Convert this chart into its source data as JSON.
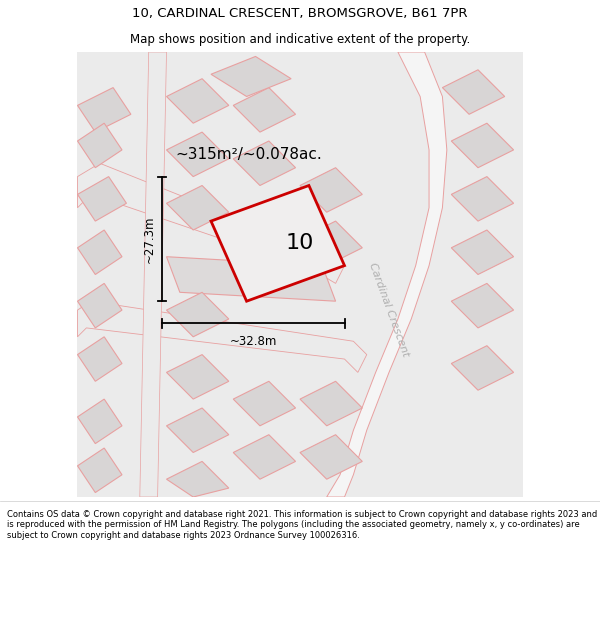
{
  "title_line1": "10, CARDINAL CRESCENT, BROMSGROVE, B61 7PR",
  "title_line2": "Map shows position and indicative extent of the property.",
  "area_text": "~315m²/~0.078ac.",
  "number_label": "10",
  "dim_width": "~32.8m",
  "dim_height": "~27.3m",
  "street_label": "Cardinal Crescent",
  "footer_text": "Contains OS data © Crown copyright and database right 2021. This information is subject to Crown copyright and database rights 2023 and is reproduced with the permission of HM Land Registry. The polygons (including the associated geometry, namely x, y co-ordinates) are subject to Crown copyright and database rights 2023 Ordnance Survey 100026316.",
  "map_bg": "#ebebeb",
  "building_fill": "#d8d5d5",
  "building_edge": "#e8a0a0",
  "road_fill": "#f5f5f5",
  "road_edge": "#e8a0a0",
  "plot_fill": "#f0eeee",
  "plot_edge": "#cc0000",
  "text_color": "#000000",
  "street_color": "#b0b0b0",
  "title_bg": "#ffffff",
  "footer_bg": "#ffffff"
}
